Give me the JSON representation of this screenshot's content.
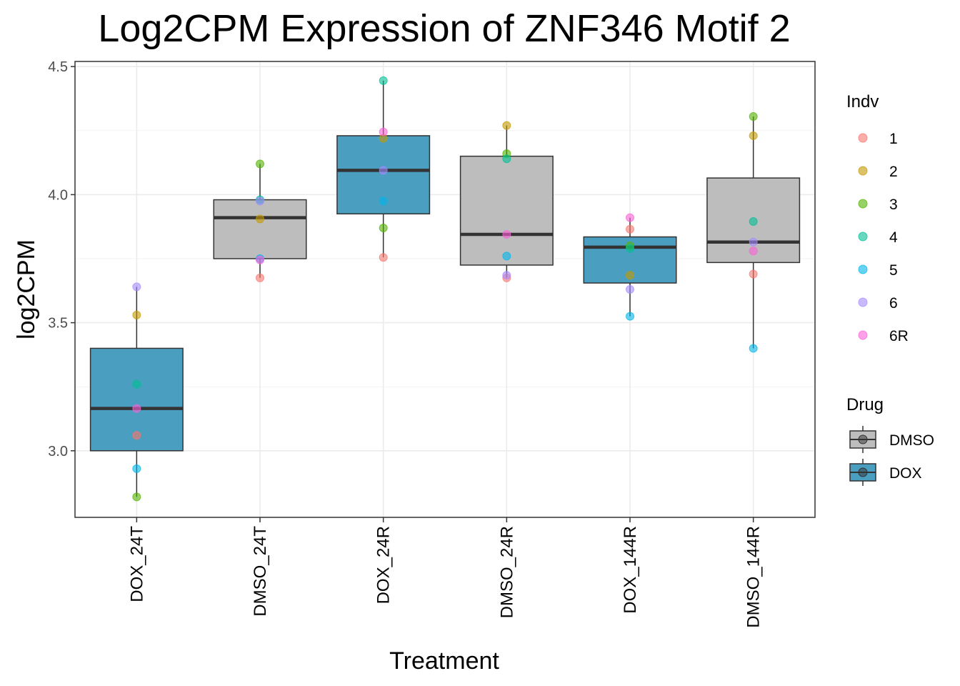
{
  "chart_data": {
    "type": "box",
    "title": "Log2CPM Expression of ZNF346 Motif 2",
    "xlabel": "Treatment",
    "ylabel": "log2CPM",
    "ylim": [
      2.74,
      4.52
    ],
    "yticks": [
      3.0,
      3.5,
      4.0,
      4.5
    ],
    "ytick_labels": [
      "3.0",
      "3.5",
      "4.0",
      "4.5"
    ],
    "grid": true,
    "categories": [
      "DOX_24T",
      "DMSO_24T",
      "DOX_24R",
      "DMSO_24R",
      "DOX_144R",
      "DMSO_144R"
    ],
    "boxes": [
      {
        "category": "DOX_24T",
        "drug": "DOX",
        "whisker_low": 2.82,
        "q1": 3.0,
        "median": 3.165,
        "q3": 3.4,
        "whisker_high": 3.64
      },
      {
        "category": "DMSO_24T",
        "drug": "DMSO",
        "whisker_low": 3.675,
        "q1": 3.75,
        "median": 3.91,
        "q3": 3.98,
        "whisker_high": 4.12
      },
      {
        "category": "DOX_24R",
        "drug": "DOX",
        "whisker_low": 3.755,
        "q1": 3.925,
        "median": 4.095,
        "q3": 4.23,
        "whisker_high": 4.445
      },
      {
        "category": "DMSO_24R",
        "drug": "DMSO",
        "whisker_low": 3.675,
        "q1": 3.725,
        "median": 3.845,
        "q3": 4.15,
        "whisker_high": 4.27
      },
      {
        "category": "DOX_144R",
        "drug": "DOX",
        "whisker_low": 3.525,
        "q1": 3.655,
        "median": 3.795,
        "q3": 3.835,
        "whisker_high": 3.91
      },
      {
        "category": "DMSO_144R",
        "drug": "DMSO",
        "whisker_low": 3.4,
        "q1": 3.735,
        "median": 3.815,
        "q3": 4.065,
        "whisker_high": 4.305
      }
    ],
    "points": [
      {
        "category": "DOX_24T",
        "indv": "1",
        "value": 3.06
      },
      {
        "category": "DOX_24T",
        "indv": "2",
        "value": 3.53
      },
      {
        "category": "DOX_24T",
        "indv": "3",
        "value": 2.82
      },
      {
        "category": "DOX_24T",
        "indv": "4",
        "value": 3.26
      },
      {
        "category": "DOX_24T",
        "indv": "5",
        "value": 2.93
      },
      {
        "category": "DOX_24T",
        "indv": "6",
        "value": 3.64
      },
      {
        "category": "DOX_24T",
        "indv": "6R",
        "value": 3.165
      },
      {
        "category": "DMSO_24T",
        "indv": "1",
        "value": 3.675
      },
      {
        "category": "DMSO_24T",
        "indv": "2",
        "value": 3.905
      },
      {
        "category": "DMSO_24T",
        "indv": "3",
        "value": 4.12
      },
      {
        "category": "DMSO_24T",
        "indv": "4",
        "value": 3.98
      },
      {
        "category": "DMSO_24T",
        "indv": "5",
        "value": 3.75
      },
      {
        "category": "DMSO_24T",
        "indv": "6",
        "value": 3.975
      },
      {
        "category": "DMSO_24T",
        "indv": "6R",
        "value": 3.745
      },
      {
        "category": "DOX_24R",
        "indv": "1",
        "value": 3.755
      },
      {
        "category": "DOX_24R",
        "indv": "2",
        "value": 4.22
      },
      {
        "category": "DOX_24R",
        "indv": "3",
        "value": 3.87
      },
      {
        "category": "DOX_24R",
        "indv": "4",
        "value": 4.445
      },
      {
        "category": "DOX_24R",
        "indv": "5",
        "value": 3.975
      },
      {
        "category": "DOX_24R",
        "indv": "6",
        "value": 4.095
      },
      {
        "category": "DOX_24R",
        "indv": "6R",
        "value": 4.245
      },
      {
        "category": "DMSO_24R",
        "indv": "1",
        "value": 3.675
      },
      {
        "category": "DMSO_24R",
        "indv": "2",
        "value": 4.27
      },
      {
        "category": "DMSO_24R",
        "indv": "3",
        "value": 4.16
      },
      {
        "category": "DMSO_24R",
        "indv": "4",
        "value": 4.14
      },
      {
        "category": "DMSO_24R",
        "indv": "5",
        "value": 3.76
      },
      {
        "category": "DMSO_24R",
        "indv": "6",
        "value": 3.685
      },
      {
        "category": "DMSO_24R",
        "indv": "6R",
        "value": 3.845
      },
      {
        "category": "DOX_144R",
        "indv": "1",
        "value": 3.865
      },
      {
        "category": "DOX_144R",
        "indv": "2",
        "value": 3.685
      },
      {
        "category": "DOX_144R",
        "indv": "3",
        "value": 3.8
      },
      {
        "category": "DOX_144R",
        "indv": "4",
        "value": 3.79
      },
      {
        "category": "DOX_144R",
        "indv": "5",
        "value": 3.525
      },
      {
        "category": "DOX_144R",
        "indv": "6",
        "value": 3.63
      },
      {
        "category": "DOX_144R",
        "indv": "6R",
        "value": 3.91
      },
      {
        "category": "DMSO_144R",
        "indv": "1",
        "value": 3.69
      },
      {
        "category": "DMSO_144R",
        "indv": "2",
        "value": 4.23
      },
      {
        "category": "DMSO_144R",
        "indv": "3",
        "value": 4.305
      },
      {
        "category": "DMSO_144R",
        "indv": "4",
        "value": 3.895
      },
      {
        "category": "DMSO_144R",
        "indv": "5",
        "value": 3.4
      },
      {
        "category": "DMSO_144R",
        "indv": "6",
        "value": 3.815
      },
      {
        "category": "DMSO_144R",
        "indv": "6R",
        "value": 3.78
      }
    ],
    "legend_indv": {
      "title": "Indv",
      "entries": [
        {
          "label": "1",
          "color": "#F8766D"
        },
        {
          "label": "2",
          "color": "#C49A00"
        },
        {
          "label": "3",
          "color": "#53B400"
        },
        {
          "label": "4",
          "color": "#00C094"
        },
        {
          "label": "5",
          "color": "#00B6EB"
        },
        {
          "label": "6",
          "color": "#A58AFF"
        },
        {
          "label": "6R",
          "color": "#FB61D7"
        }
      ]
    },
    "legend_drug": {
      "title": "Drug",
      "entries": [
        {
          "label": "DMSO",
          "color": "#BDBDBD"
        },
        {
          "label": "DOX",
          "color": "#4A9EBF"
        }
      ]
    },
    "legend_placement": "right"
  }
}
